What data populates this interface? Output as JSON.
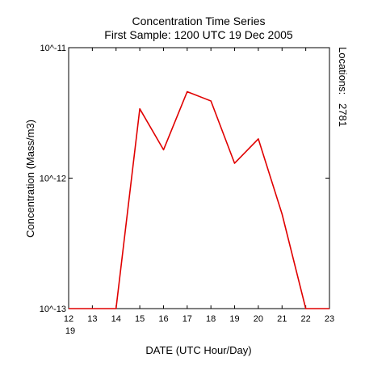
{
  "chart_data": {
    "type": "line",
    "title": "Concentration Time Series",
    "subtitle": "First Sample: 1200 UTC 19 Dec 2005",
    "xlabel": "DATE (UTC Hour/Day)",
    "ylabel": "Concentration (Mass/m3)",
    "yscale": "log",
    "xlim": [
      12,
      23
    ],
    "ylim": [
      1e-13,
      1e-11
    ],
    "x_tick_labels": [
      "12",
      "13",
      "14",
      "15",
      "16",
      "17",
      "18",
      "19",
      "20",
      "21",
      "22",
      "23"
    ],
    "x_day_label": "19",
    "y_tick_labels": [
      "10^-11",
      "10^-12",
      "10^-13"
    ],
    "side_label": "Locations:",
    "side_value": "2781",
    "side_value_color": "#e00000",
    "grid": false,
    "series": [
      {
        "color": "#e00000",
        "x": [
          12,
          13,
          14,
          15,
          16,
          17,
          18,
          19,
          20,
          21,
          22,
          23
        ],
        "y": [
          1e-13,
          1e-13,
          1e-13,
          3.4e-12,
          1.65e-12,
          4.6e-12,
          3.9e-12,
          1.3e-12,
          2e-12,
          5.3e-13,
          1e-13,
          1e-13
        ]
      }
    ]
  }
}
